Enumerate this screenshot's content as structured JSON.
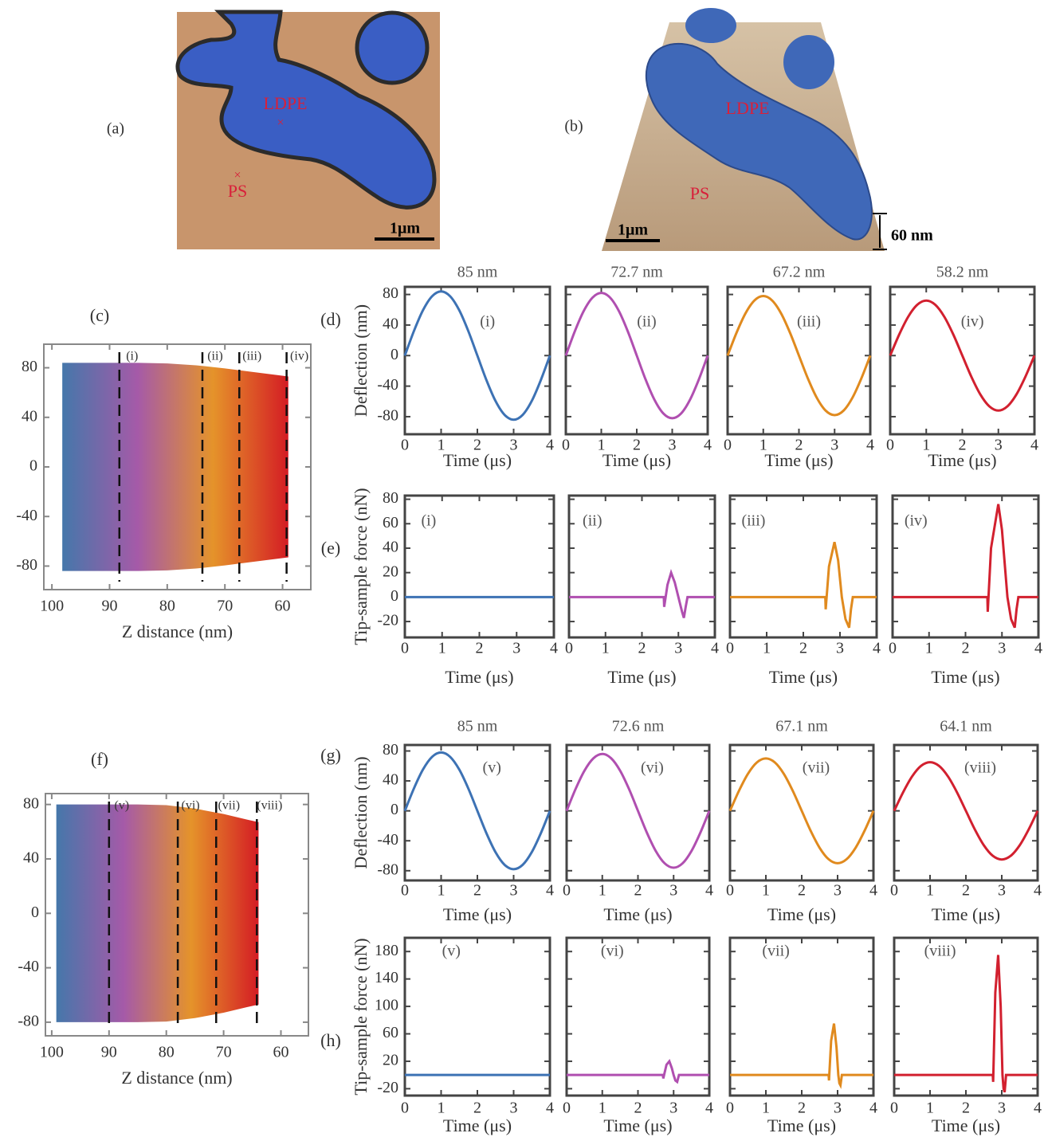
{
  "images": [
    {
      "label": "(a)",
      "regions": [
        "LDPE",
        "PS"
      ],
      "scale_bar": "1μm"
    },
    {
      "label": "(b)",
      "regions": [
        "LDPE",
        "PS"
      ],
      "scale_bar": "1μm",
      "height_bar": "60 nm"
    }
  ],
  "chart_data": [
    {
      "type": "area",
      "panel": "(c)",
      "x_label": "Z distance (nm)",
      "colors": [
        "#4577aa",
        "#a55aa8",
        "#e5932a",
        "#d41c24"
      ],
      "x": [
        98.2,
        90,
        85,
        80,
        75,
        70,
        65,
        59
      ],
      "upper": [
        84,
        84,
        84,
        83.5,
        82,
        79.5,
        76.5,
        73
      ],
      "lower": [
        -84,
        -84,
        -84,
        -83.5,
        -82,
        -79.5,
        -76.5,
        -73
      ],
      "markers": [
        {
          "x": 88.3,
          "label": "(i)"
        },
        {
          "x": 73.9,
          "label": "(ii)"
        },
        {
          "x": 67.5,
          "label": "(iii)"
        },
        {
          "x": 59.3,
          "label": "(iv)"
        }
      ],
      "xlim": [
        101.4,
        55.1
      ],
      "ylim": [
        -99,
        99
      ],
      "xticks": [
        100,
        90,
        80,
        70,
        60
      ],
      "yticks": [
        80,
        40,
        0,
        -40,
        -80
      ]
    },
    {
      "type": "line",
      "panel": "(d)",
      "title": "85 nm",
      "label": "(i)",
      "y_label": "Deflection (nm)",
      "x_label": "Time (μs)",
      "color": "#3d72b4",
      "smooth": true,
      "x": [
        0,
        0.25,
        0.5,
        0.75,
        1,
        1.25,
        1.5,
        1.75,
        2,
        2.25,
        2.5,
        2.75,
        3,
        3.25,
        3.5,
        3.75,
        4
      ],
      "values": [
        0,
        32.1,
        59.4,
        77.6,
        84,
        77.6,
        59.4,
        32.1,
        0,
        -32.1,
        -59.4,
        -77.6,
        -84,
        -77.6,
        -59.4,
        -32.1,
        0
      ],
      "xlim": [
        0,
        4
      ],
      "ylim": [
        -103,
        90
      ],
      "xticks": [
        0,
        1,
        2,
        3,
        4
      ],
      "yticks": [
        80,
        40,
        0,
        -40,
        -80
      ]
    },
    {
      "type": "line",
      "title": "72.7 nm",
      "label": "(ii)",
      "x_label": "Time (μs)",
      "color": "#b04fb0",
      "smooth": true,
      "x": [
        0,
        0.25,
        0.5,
        0.75,
        1,
        1.25,
        1.5,
        1.75,
        2,
        2.25,
        2.5,
        2.75,
        3,
        3.25,
        3.5,
        3.75,
        4
      ],
      "values": [
        0,
        31.4,
        58,
        75.8,
        82,
        75.8,
        58,
        31.4,
        0,
        -31.4,
        -58,
        -75.8,
        -82,
        -75.8,
        -58,
        -31.4,
        0
      ],
      "xlim": [
        0,
        4
      ],
      "ylim": [
        -103,
        90
      ],
      "xticks": [
        0,
        1,
        2,
        3,
        4
      ],
      "yticks": [
        80,
        40,
        0,
        -40,
        -80
      ]
    },
    {
      "type": "line",
      "title": "67.2 nm",
      "label": "(iii)",
      "x_label": "Time (μs)",
      "color": "#e08a1e",
      "smooth": true,
      "x": [
        0,
        0.25,
        0.5,
        0.75,
        1,
        1.25,
        1.5,
        1.75,
        2,
        2.25,
        2.5,
        2.75,
        3,
        3.25,
        3.5,
        3.75,
        4
      ],
      "values": [
        0,
        29.9,
        55.2,
        72.1,
        78,
        72.1,
        55.2,
        29.9,
        0,
        -29.9,
        -55.2,
        -72.1,
        -78,
        -72.1,
        -55.2,
        -29.9,
        0
      ],
      "xlim": [
        0,
        4
      ],
      "ylim": [
        -103,
        90
      ],
      "xticks": [
        0,
        1,
        2,
        3,
        4
      ],
      "yticks": [
        80,
        40,
        0,
        -40,
        -80
      ]
    },
    {
      "type": "line",
      "title": "58.2 nm",
      "label": "(iv)",
      "x_label": "Time (μs)",
      "color": "#d2202f",
      "smooth": true,
      "x": [
        0,
        0.25,
        0.5,
        0.75,
        1,
        1.25,
        1.5,
        1.75,
        2,
        2.25,
        2.5,
        2.75,
        3,
        3.25,
        3.5,
        3.75,
        4
      ],
      "values": [
        0,
        27.6,
        50.9,
        66.5,
        72,
        66.5,
        50.9,
        27.6,
        0,
        -27.6,
        -50.9,
        -66.5,
        -72,
        -66.5,
        -50.9,
        -27.6,
        0
      ],
      "xlim": [
        0,
        4
      ],
      "ylim": [
        -103,
        90
      ],
      "xticks": [
        0,
        1,
        2,
        3,
        4
      ],
      "yticks": [
        80,
        40,
        0,
        -40,
        -80
      ]
    },
    {
      "type": "line",
      "panel": "(e)",
      "label": "(i)",
      "y_label": "Tip-sample force (nN)",
      "x_label": "Time (μs)",
      "color": "#3d72b4",
      "x": [
        0,
        4
      ],
      "values": [
        0,
        0
      ],
      "xlim": [
        0,
        4
      ],
      "ylim": [
        -33,
        83
      ],
      "xticks": [
        0,
        1,
        2,
        3,
        4
      ],
      "yticks": [
        80,
        60,
        40,
        20,
        0,
        -20
      ]
    },
    {
      "type": "line",
      "label": "(ii)",
      "x_label": "Time (μs)",
      "color": "#b04fb0",
      "x": [
        0,
        2.6,
        2.61,
        2.7,
        2.8,
        2.9,
        3.0,
        3.1,
        3.15,
        3.2,
        3.25,
        4
      ],
      "values": [
        0,
        0,
        -8,
        10,
        20,
        12,
        0,
        -12,
        -17,
        -8,
        0,
        0
      ],
      "xlim": [
        0,
        4
      ],
      "ylim": [
        -33,
        83
      ],
      "xticks": [
        0,
        1,
        2,
        3,
        4
      ],
      "yticks": [
        80,
        60,
        40,
        20,
        0,
        -20
      ]
    },
    {
      "type": "line",
      "label": "(iii)",
      "x_label": "Time (μs)",
      "color": "#e08a1e",
      "x": [
        0,
        2.6,
        2.61,
        2.7,
        2.85,
        2.95,
        3.05,
        3.15,
        3.25,
        3.3,
        3.35,
        4
      ],
      "values": [
        0,
        0,
        -10,
        25,
        45,
        30,
        0,
        -18,
        -25,
        -10,
        0,
        0
      ],
      "xlim": [
        0,
        4
      ],
      "ylim": [
        -33,
        83
      ],
      "xticks": [
        0,
        1,
        2,
        3,
        4
      ],
      "yticks": [
        80,
        60,
        40,
        20,
        0,
        -20
      ]
    },
    {
      "type": "line",
      "label": "(iv)",
      "x_label": "Time (μs)",
      "color": "#d2202f",
      "x": [
        0,
        2.6,
        2.61,
        2.7,
        2.9,
        3.0,
        3.15,
        3.25,
        3.35,
        3.4,
        3.45,
        4
      ],
      "values": [
        0,
        0,
        -12,
        40,
        76,
        55,
        0,
        -18,
        -25,
        -10,
        0,
        0
      ],
      "xlim": [
        0,
        4
      ],
      "ylim": [
        -33,
        83
      ],
      "xticks": [
        0,
        1,
        2,
        3,
        4
      ],
      "yticks": [
        80,
        60,
        40,
        20,
        0,
        -20
      ]
    },
    {
      "type": "area",
      "panel": "(f)",
      "x_label": "Z distance (nm)",
      "colors": [
        "#4577aa",
        "#a55aa8",
        "#e5932a",
        "#d41c24"
      ],
      "x": [
        99.2,
        90,
        85,
        80,
        75,
        70,
        66,
        63.9
      ],
      "upper": [
        80,
        80,
        80,
        79.5,
        77,
        73,
        69,
        67
      ],
      "lower": [
        -80,
        -80,
        -80,
        -79.5,
        -77,
        -73,
        -69,
        -67
      ],
      "markers": [
        {
          "x": 90,
          "label": "(v)"
        },
        {
          "x": 78,
          "label": "(vi)"
        },
        {
          "x": 71.3,
          "label": "(vii)"
        },
        {
          "x": 64.2,
          "label": "(viii)"
        }
      ],
      "xlim": [
        101.1,
        55.2
      ],
      "ylim": [
        -90,
        88
      ],
      "xticks": [
        100,
        90,
        80,
        70,
        60
      ],
      "yticks": [
        80,
        40,
        0,
        -40,
        -80
      ]
    },
    {
      "type": "line",
      "panel": "(g)",
      "title": "85 nm",
      "label": "(v)",
      "y_label": "Deflection (nm)",
      "x_label": "Time (μs)",
      "color": "#3d72b4",
      "smooth": true,
      "x": [
        0,
        0.25,
        0.5,
        0.75,
        1,
        1.25,
        1.5,
        1.75,
        2,
        2.25,
        2.5,
        2.75,
        3,
        3.25,
        3.5,
        3.75,
        4
      ],
      "values": [
        0,
        29.9,
        55.2,
        72.1,
        78,
        72.1,
        55.2,
        29.9,
        0,
        -29.9,
        -55.2,
        -72.1,
        -78,
        -72.1,
        -55.2,
        -29.9,
        0
      ],
      "xlim": [
        0,
        4
      ],
      "ylim": [
        -93,
        88
      ],
      "xticks": [
        0,
        1,
        2,
        3,
        4
      ],
      "yticks": [
        80,
        40,
        0,
        -40,
        -80
      ]
    },
    {
      "type": "line",
      "title": "72.6 nm",
      "label": "(vi)",
      "x_label": "Time (μs)",
      "color": "#b04fb0",
      "smooth": true,
      "x": [
        0,
        0.25,
        0.5,
        0.75,
        1,
        1.25,
        1.5,
        1.75,
        2,
        2.25,
        2.5,
        2.75,
        3,
        3.25,
        3.5,
        3.75,
        4
      ],
      "values": [
        0,
        29.1,
        53.7,
        70.2,
        76,
        70.2,
        53.7,
        29.1,
        0,
        -29.1,
        -53.7,
        -70.2,
        -76,
        -70.2,
        -53.7,
        -29.1,
        0
      ],
      "xlim": [
        0,
        4
      ],
      "ylim": [
        -93,
        88
      ],
      "xticks": [
        0,
        1,
        2,
        3,
        4
      ],
      "yticks": [
        80,
        40,
        0,
        -40,
        -80
      ]
    },
    {
      "type": "line",
      "title": "67.1 nm",
      "label": "(vii)",
      "x_label": "Time (μs)",
      "color": "#e08a1e",
      "smooth": true,
      "x": [
        0,
        0.25,
        0.5,
        0.75,
        1,
        1.25,
        1.5,
        1.75,
        2,
        2.25,
        2.5,
        2.75,
        3,
        3.25,
        3.5,
        3.75,
        4
      ],
      "values": [
        0,
        26.8,
        49.5,
        64.7,
        70,
        64.7,
        49.5,
        26.8,
        0,
        -26.8,
        -49.5,
        -64.7,
        -70,
        -64.7,
        -49.5,
        -26.8,
        0
      ],
      "xlim": [
        0,
        4
      ],
      "ylim": [
        -93,
        88
      ],
      "xticks": [
        0,
        1,
        2,
        3,
        4
      ],
      "yticks": [
        80,
        40,
        0,
        -40,
        -80
      ]
    },
    {
      "type": "line",
      "title": "64.1 nm",
      "label": "(viii)",
      "x_label": "Time (μs)",
      "color": "#d2202f",
      "smooth": true,
      "x": [
        0,
        0.25,
        0.5,
        0.75,
        1,
        1.25,
        1.5,
        1.75,
        2,
        2.25,
        2.5,
        2.75,
        3,
        3.25,
        3.5,
        3.75,
        4
      ],
      "values": [
        0,
        24.9,
        46,
        60.1,
        65,
        60.1,
        46,
        24.9,
        0,
        -24.9,
        -46,
        -60.1,
        -65,
        -60.1,
        -46,
        -24.9,
        0
      ],
      "xlim": [
        0,
        4
      ],
      "ylim": [
        -93,
        88
      ],
      "xticks": [
        0,
        1,
        2,
        3,
        4
      ],
      "yticks": [
        80,
        40,
        0,
        -40,
        -80
      ]
    },
    {
      "type": "line",
      "panel": "(h)",
      "label": "(v)",
      "y_label": "Tip-sample force (nN)",
      "x_label": "Time (μs)",
      "color": "#3d72b4",
      "x": [
        0,
        4
      ],
      "values": [
        0,
        0
      ],
      "xlim": [
        0,
        4
      ],
      "ylim": [
        -30,
        200
      ],
      "xticks": [
        0,
        1,
        2,
        3,
        4
      ],
      "yticks": [
        180,
        140,
        100,
        60,
        20,
        -20
      ]
    },
    {
      "type": "line",
      "label": "(vi)",
      "x_label": "Time (μs)",
      "color": "#b04fb0",
      "x": [
        0,
        2.7,
        2.71,
        2.8,
        2.88,
        2.95,
        3.0,
        3.05,
        3.1,
        3.15,
        4
      ],
      "values": [
        0,
        0,
        -5,
        15,
        20,
        10,
        0,
        -8,
        -10,
        0,
        0
      ],
      "xlim": [
        0,
        4
      ],
      "ylim": [
        -30,
        200
      ],
      "xticks": [
        0,
        1,
        2,
        3,
        4
      ],
      "yticks": [
        180,
        140,
        100,
        60,
        20,
        -20
      ]
    },
    {
      "type": "line",
      "label": "(vii)",
      "x_label": "Time (μs)",
      "color": "#e08a1e",
      "x": [
        0,
        2.75,
        2.76,
        2.82,
        2.9,
        2.97,
        3.02,
        3.05,
        3.08,
        3.12,
        4
      ],
      "values": [
        0,
        0,
        -8,
        50,
        75,
        40,
        0,
        -12,
        -15,
        0,
        0
      ],
      "xlim": [
        0,
        4
      ],
      "ylim": [
        -30,
        200
      ],
      "xticks": [
        0,
        1,
        2,
        3,
        4
      ],
      "yticks": [
        180,
        140,
        100,
        60,
        20,
        -20
      ]
    },
    {
      "type": "line",
      "label": "(viii)",
      "x_label": "Time (μs)",
      "color": "#d2202f",
      "x": [
        0,
        2.75,
        2.76,
        2.82,
        2.9,
        2.97,
        3.02,
        3.05,
        3.08,
        3.12,
        4
      ],
      "values": [
        0,
        0,
        -10,
        120,
        175,
        100,
        0,
        -20,
        -25,
        0,
        0
      ],
      "xlim": [
        0,
        4
      ],
      "ylim": [
        -30,
        200
      ],
      "xticks": [
        0,
        1,
        2,
        3,
        4
      ],
      "yticks": [
        180,
        140,
        100,
        60,
        20,
        -20
      ]
    }
  ]
}
